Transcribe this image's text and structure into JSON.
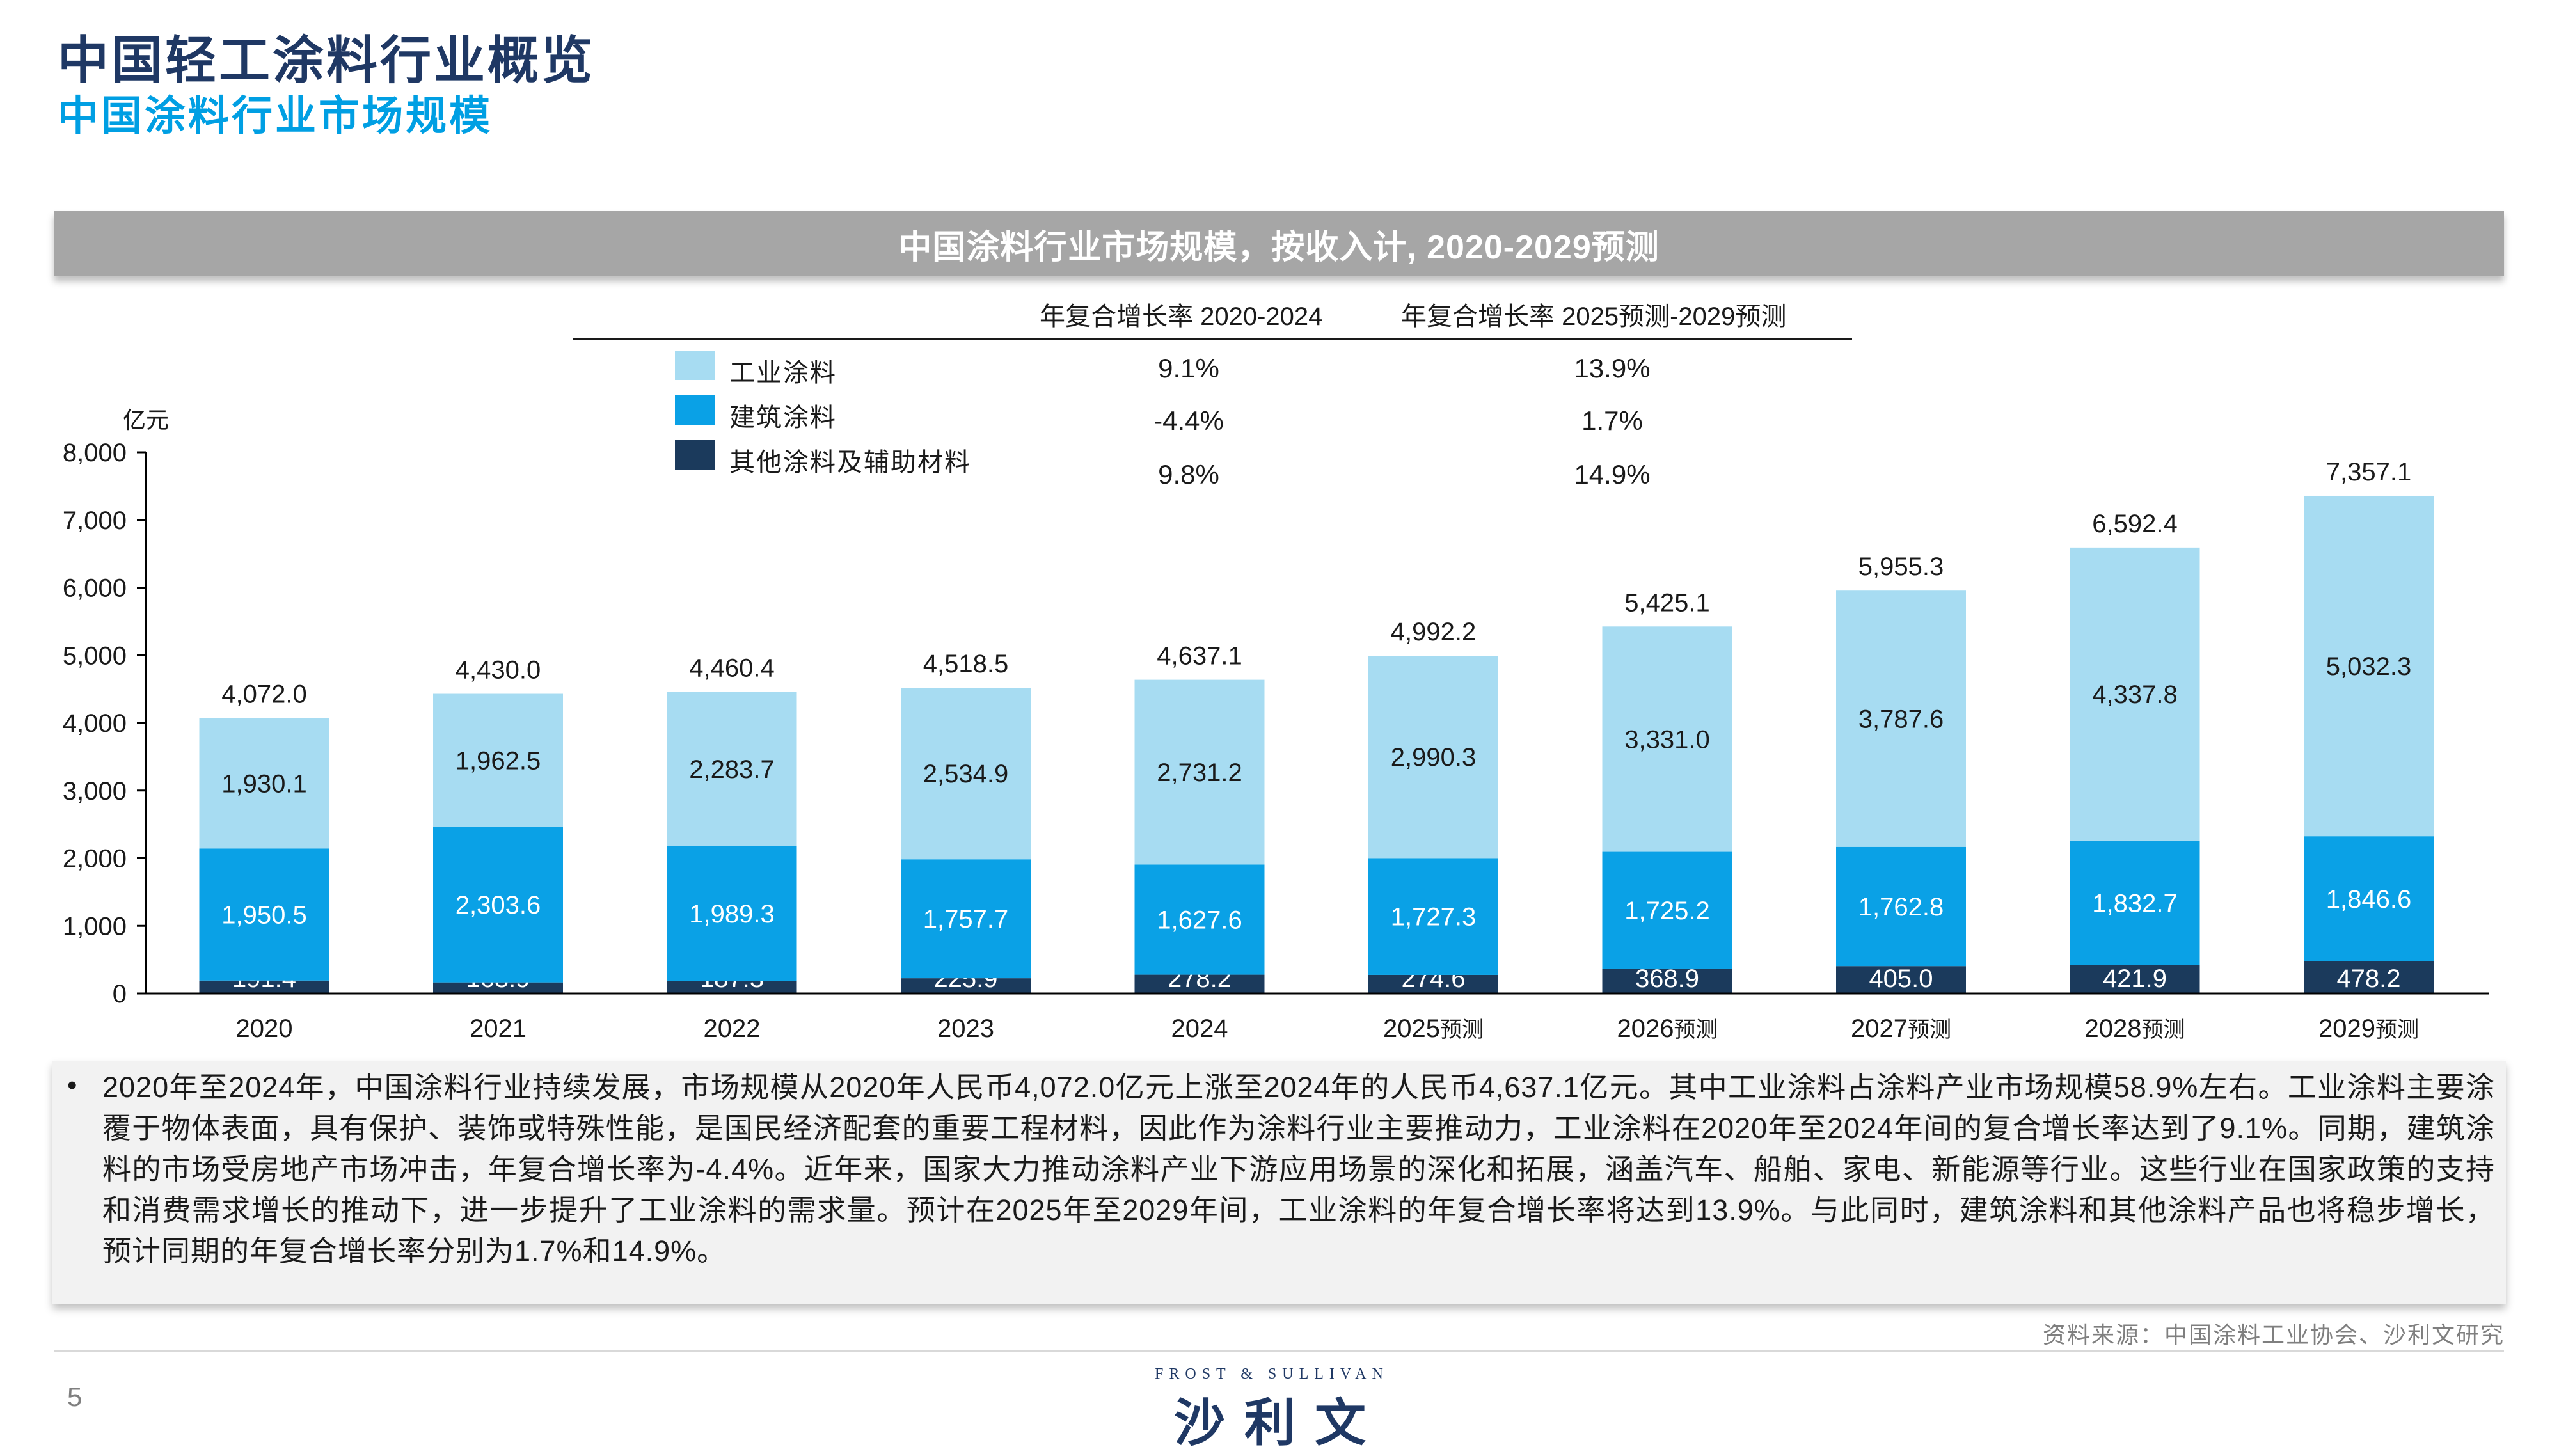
{
  "header": {
    "title": "中国轻工涂料行业概览",
    "subtitle": "中国涂料行业市场规模"
  },
  "banner": {
    "text": "中国涂料行业市场规模，按收入计, 2020-2029预测"
  },
  "cagr": {
    "head1": "年复合增长率 2020-2024",
    "head2": "年复合增长率 2025预测-2029预测",
    "rows": [
      {
        "c1": "9.1%",
        "c2": "13.9%"
      },
      {
        "c1": "-4.4%",
        "c2": "1.7%"
      },
      {
        "c1": "9.8%",
        "c2": "14.9%"
      }
    ]
  },
  "chart_data": {
    "type": "bar",
    "stacked": true,
    "unit_label": "亿元",
    "categories": [
      "2020",
      "2021",
      "2022",
      "2023",
      "2024",
      "2025预测",
      "2026预测",
      "2027预测",
      "2028预测",
      "2029预测"
    ],
    "series": [
      {
        "name": "其他涂料及辅助材料",
        "color": "#1b3a5c",
        "values": [
          191.4,
          163.9,
          187.3,
          225.9,
          278.2,
          274.6,
          368.9,
          405.0,
          421.9,
          478.2
        ]
      },
      {
        "name": "建筑涂料",
        "color": "#0aa1e6",
        "values": [
          1950.5,
          2303.6,
          1989.3,
          1757.7,
          1627.6,
          1727.3,
          1725.2,
          1762.8,
          1832.7,
          1846.6
        ]
      },
      {
        "name": "工业涂料",
        "color": "#a7dcf2",
        "values": [
          1930.1,
          1962.5,
          2283.7,
          2534.9,
          2731.2,
          2990.3,
          3331.0,
          3787.6,
          4337.8,
          5032.3
        ]
      }
    ],
    "totals": [
      "4,072.0",
      "4,430.0",
      "4,460.4",
      "4,518.5",
      "4,637.1",
      "4,992.2",
      "5,425.1",
      "5,955.3",
      "6,592.4",
      "7,357.1"
    ],
    "ylim": [
      0,
      8000
    ],
    "yticks": [
      "0",
      "1,000",
      "2,000",
      "3,000",
      "4,000",
      "5,000",
      "6,000",
      "7,000",
      "8,000"
    ],
    "legend_order": [
      "工业涂料",
      "建筑涂料",
      "其他涂料及辅助材料"
    ]
  },
  "body": {
    "bullet": "•",
    "text": "2020年至2024年，中国涂料行业持续发展，市场规模从2020年人民币4,072.0亿元上涨至2024年的人民币4,637.1亿元。其中工业涂料占涂料产业市场规模58.9%左右。工业涂料主要涂覆于物体表面，具有保护、装饰或特殊性能，是国民经济配套的重要工程材料，因此作为涂料行业主要推动力，工业涂料在2020年至2024年间的复合增长率达到了9.1%。同期，建筑涂料的市场受房地产市场冲击，年复合增长率为-4.4%。近年来，国家大力推动涂料产业下游应用场景的深化和拓展，涵盖汽车、船舶、家电、新能源等行业。这些行业在国家政策的支持和消费需求增长的推动下，进一步提升了工业涂料的需求量。预计在2025年至2029年间，工业涂料的年复合增长率将达到13.9%。与此同时，建筑涂料和其他涂料产品也将稳步增长，预计同期的年复合增长率分别为1.7%和14.9%。"
  },
  "footer": {
    "source": "资料来源：中国涂料工业协会、沙利文研究",
    "page": "5",
    "logo_en": "FROST & SULLIVAN",
    "logo_cn": "沙利文"
  }
}
